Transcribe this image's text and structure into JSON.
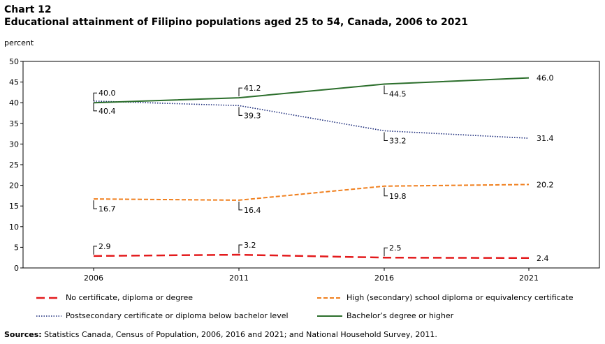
{
  "header": {
    "chart_number": "Chart 12",
    "title": "Educational attainment of Filipino  populations aged 25 to 54, Canada, 2006 to 2021",
    "unit": "percent"
  },
  "footer": {
    "sources_label": "Sources:",
    "sources_text": " Statistics Canada, Census of Population, 2006, 2016 and 2021; and National Household Survey, 2011."
  },
  "chart_data": {
    "type": "line",
    "x": [
      "2006",
      "2011",
      "2016",
      "2021"
    ],
    "ylim": [
      0,
      50
    ],
    "yticks": [
      0,
      5,
      10,
      15,
      20,
      25,
      30,
      35,
      40,
      45,
      50
    ],
    "grid": false,
    "legend_position": "bottom",
    "series": [
      {
        "name": "No certificate, diploma or degree",
        "values": [
          2.9,
          3.2,
          2.5,
          2.4
        ],
        "labels": [
          "2.9",
          "3.2",
          "2.5",
          "2.4"
        ],
        "color": "#e31a1c",
        "style": "longdash"
      },
      {
        "name": "High (secondary) school diploma or equivalency certificate",
        "values": [
          16.7,
          16.4,
          19.8,
          20.2
        ],
        "labels": [
          "16.7",
          "16.4",
          "19.8",
          "20.2"
        ],
        "color": "#f07f1d",
        "style": "dash"
      },
      {
        "name": "Postsecondary certificate or diploma below bachelor level",
        "values": [
          40.4,
          39.3,
          33.2,
          31.4
        ],
        "labels": [
          "40.4",
          "39.3",
          "33.2",
          "31.4"
        ],
        "color": "#1a2a7a",
        "style": "dot"
      },
      {
        "name": "Bachelor’s degree or higher",
        "values": [
          40.0,
          41.2,
          44.5,
          46.0
        ],
        "labels": [
          "40.0",
          "41.2",
          "44.5",
          "46.0"
        ],
        "color": "#2b6e2b",
        "style": "solid"
      }
    ]
  }
}
